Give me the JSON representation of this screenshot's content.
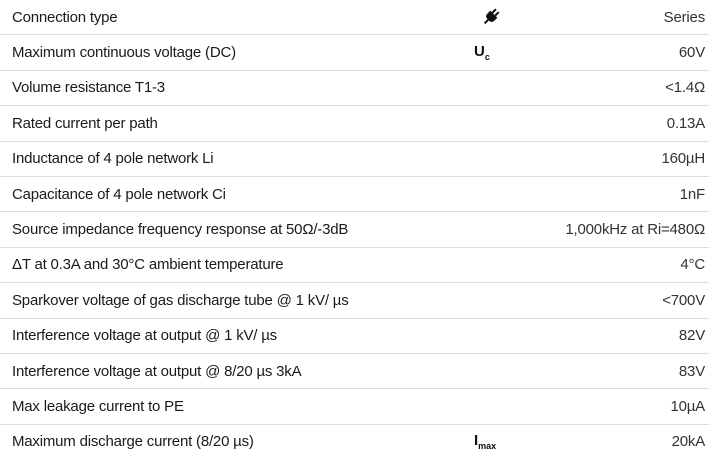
{
  "table": {
    "rows": [
      {
        "label": "Connection type",
        "value": "Series"
      },
      {
        "label": "Maximum continuous voltage (DC)",
        "symbol": {
          "main": "U",
          "sub": "c"
        },
        "value": "60V"
      },
      {
        "label": "Volume resistance T1-3",
        "value": "<1.4Ω"
      },
      {
        "label": "Rated current per path",
        "value": "0.13A"
      },
      {
        "label": "Inductance of 4 pole network Li",
        "value": "160µH"
      },
      {
        "label": "Capacitance of 4 pole network Ci",
        "value": "1nF"
      },
      {
        "label": "Source impedance frequency response at 50Ω/-3dB",
        "value": "1,000kHz at Ri=480Ω"
      },
      {
        "label": "ΔT at 0.3A and 30°C ambient temperature",
        "value": "4°C"
      },
      {
        "label": "Sparkover voltage of gas discharge tube @ 1 kV/ µs",
        "value": "<700V"
      },
      {
        "label": "Interference voltage at output @ 1 kV/ µs",
        "value": "82V"
      },
      {
        "label": "Interference voltage at output @ 8/20 µs 3kA",
        "value": "83V"
      },
      {
        "label": "Max leakage current to PE",
        "value": "10µA"
      },
      {
        "label": "Maximum discharge current (8/20 µs)",
        "symbol": {
          "main": "I",
          "sub": "max"
        },
        "value": "20kA"
      }
    ]
  }
}
